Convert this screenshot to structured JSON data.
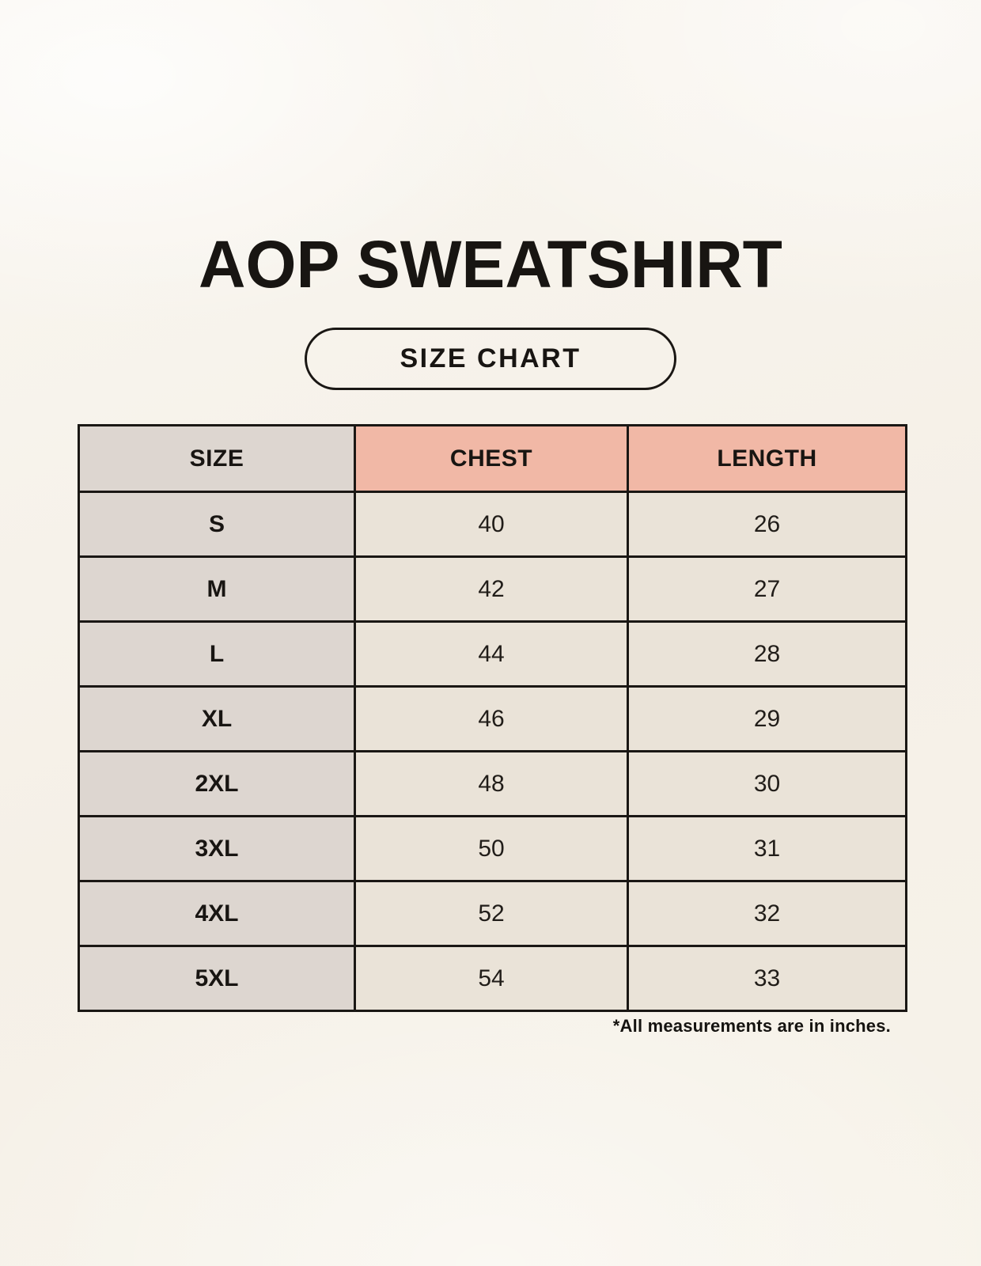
{
  "header": {
    "title": "AOP SWEATSHIRT",
    "badge_label": "SIZE CHART"
  },
  "footer": {
    "note": "*All measurements are in inches."
  },
  "colors": {
    "bg": "#f8f4ed",
    "ink": "#181512",
    "border": "#1a1714",
    "size-col": "#ddd6d0",
    "accent": "#f1b8a6",
    "cell": "#eae3d8"
  },
  "chart_data": {
    "type": "table",
    "title": "AOP SWEATSHIRT Size Chart",
    "units": "inches",
    "columns": [
      "SIZE",
      "CHEST",
      "LENGTH"
    ],
    "rows": [
      [
        "S",
        "40",
        "26"
      ],
      [
        "M",
        "42",
        "27"
      ],
      [
        "L",
        "44",
        "28"
      ],
      [
        "XL",
        "46",
        "29"
      ],
      [
        "2XL",
        "48",
        "30"
      ],
      [
        "3XL",
        "50",
        "31"
      ],
      [
        "4XL",
        "52",
        "32"
      ],
      [
        "5XL",
        "54",
        "33"
      ]
    ]
  }
}
